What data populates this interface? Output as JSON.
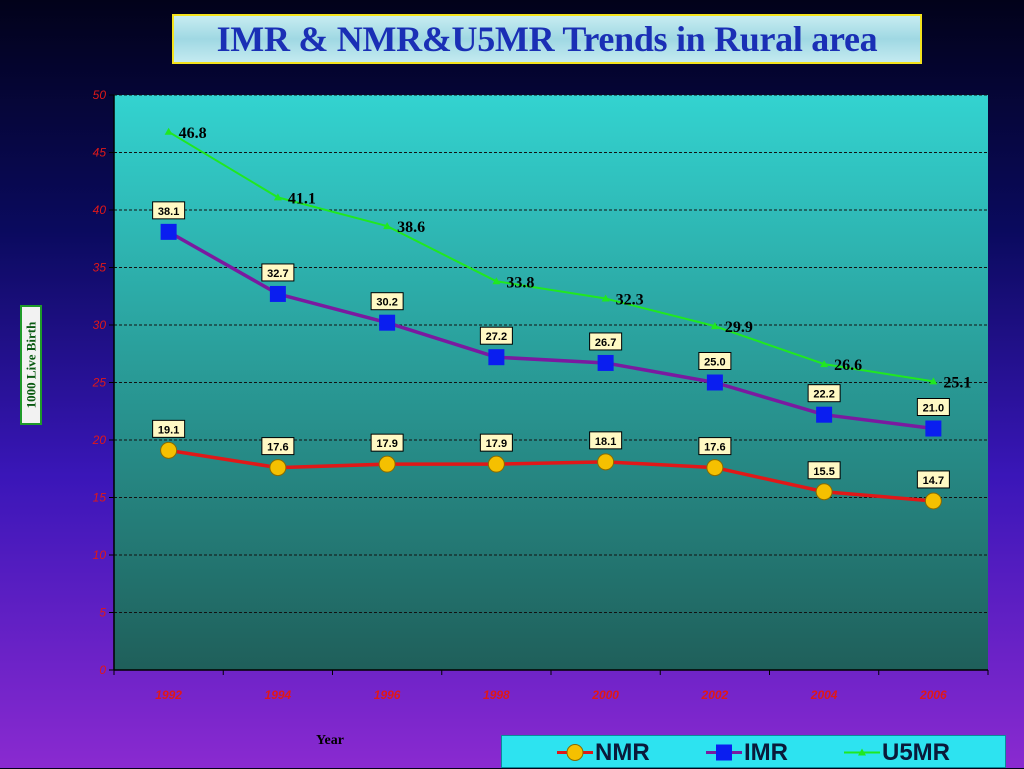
{
  "title": "IMR & NMR&U5MR Trends in Rural area",
  "colors": {
    "plot_top": "#33d3d0",
    "plot_bottom": "#1f5f5a",
    "nmr": "#e01818",
    "nmr_marker": "#f5c000",
    "imr": "#7a1aa0",
    "imr_marker": "#0a1ef0",
    "u5mr": "#20e820",
    "axis_labels": "#e01818"
  },
  "chart_data": {
    "type": "line",
    "title": "IMR & NMR&U5MR Trends in Rural area",
    "xlabel": "Year",
    "ylabel": "1000 Live Birth",
    "ylim": [
      0,
      50
    ],
    "yticks": [
      0,
      5,
      10,
      15,
      20,
      25,
      30,
      35,
      40,
      45,
      50
    ],
    "grid": true,
    "legend_position": "bottom-right",
    "categories": [
      "1992",
      "1994",
      "1996",
      "1998",
      "2000",
      "2002",
      "2004",
      "2006"
    ],
    "series": [
      {
        "name": "NMR",
        "values": [
          19.1,
          17.6,
          17.9,
          17.9,
          18.1,
          17.6,
          15.5,
          14.7
        ],
        "labels": [
          "19.1",
          "17.6",
          "17.9",
          "17.9",
          "18.1",
          "17.6",
          "15.5",
          "14.7"
        ],
        "marker": "circle"
      },
      {
        "name": "IMR",
        "values": [
          38.1,
          32.7,
          30.2,
          27.2,
          26.7,
          25.0,
          22.2,
          21.0
        ],
        "labels": [
          "38.1",
          "32.7",
          "30.2",
          "27.2",
          "26.7",
          "25.0",
          "22.2",
          "21.0"
        ],
        "marker": "square"
      },
      {
        "name": "U5MR",
        "values": [
          46.8,
          41.1,
          38.6,
          33.8,
          32.3,
          29.9,
          26.6,
          25.1
        ],
        "labels": [
          "46.8",
          "41.1",
          "38.6",
          "33.8",
          "32.3",
          "29.9",
          "26.6",
          "25.1"
        ],
        "marker": "triangle"
      }
    ]
  }
}
